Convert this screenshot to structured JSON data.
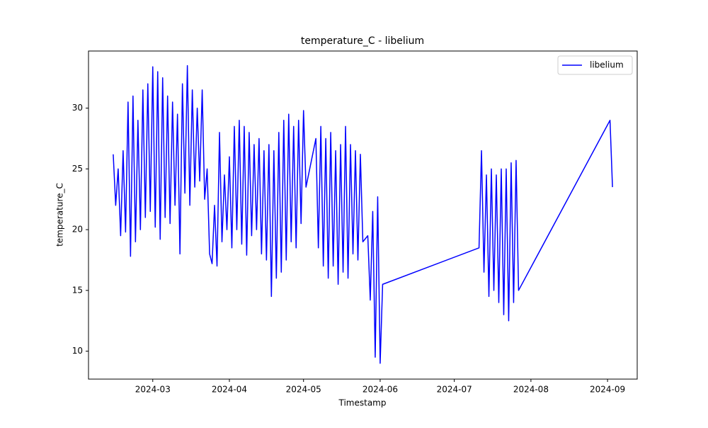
{
  "chart_data": {
    "type": "line",
    "title": "temperature_C - libelium",
    "x_label": "Timestamp",
    "y_label": "temperature_C",
    "x": [
      "2024-02-14",
      "2024-02-15",
      "2024-02-16",
      "2024-02-17",
      "2024-02-18",
      "2024-02-19",
      "2024-02-20",
      "2024-02-21",
      "2024-02-22",
      "2024-02-23",
      "2024-02-24",
      "2024-02-25",
      "2024-02-26",
      "2024-02-27",
      "2024-02-28",
      "2024-02-29",
      "2024-03-01",
      "2024-03-02",
      "2024-03-03",
      "2024-03-04",
      "2024-03-05",
      "2024-03-06",
      "2024-03-07",
      "2024-03-08",
      "2024-03-09",
      "2024-03-10",
      "2024-03-11",
      "2024-03-12",
      "2024-03-13",
      "2024-03-14",
      "2024-03-15",
      "2024-03-16",
      "2024-03-17",
      "2024-03-18",
      "2024-03-19",
      "2024-03-20",
      "2024-03-21",
      "2024-03-22",
      "2024-03-23",
      "2024-03-24",
      "2024-03-25",
      "2024-03-26",
      "2024-03-27",
      "2024-03-28",
      "2024-03-29",
      "2024-03-30",
      "2024-03-31",
      "2024-04-01",
      "2024-04-02",
      "2024-04-03",
      "2024-04-04",
      "2024-04-05",
      "2024-04-06",
      "2024-04-07",
      "2024-04-08",
      "2024-04-09",
      "2024-04-10",
      "2024-04-11",
      "2024-04-12",
      "2024-04-13",
      "2024-04-14",
      "2024-04-15",
      "2024-04-16",
      "2024-04-17",
      "2024-04-18",
      "2024-04-19",
      "2024-04-20",
      "2024-04-21",
      "2024-04-22",
      "2024-04-23",
      "2024-04-24",
      "2024-04-25",
      "2024-04-26",
      "2024-04-27",
      "2024-04-28",
      "2024-04-29",
      "2024-04-30",
      "2024-05-01",
      "2024-05-02",
      "2024-05-06",
      "2024-05-07",
      "2024-05-08",
      "2024-05-09",
      "2024-05-10",
      "2024-05-11",
      "2024-05-12",
      "2024-05-13",
      "2024-05-14",
      "2024-05-15",
      "2024-05-16",
      "2024-05-17",
      "2024-05-18",
      "2024-05-19",
      "2024-05-20",
      "2024-05-21",
      "2024-05-22",
      "2024-05-23",
      "2024-05-24",
      "2024-05-25",
      "2024-05-27",
      "2024-05-28",
      "2024-05-29",
      "2024-05-30",
      "2024-05-31",
      "2024-06-01",
      "2024-06-02",
      "2024-07-11",
      "2024-07-12",
      "2024-07-13",
      "2024-07-14",
      "2024-07-15",
      "2024-07-16",
      "2024-07-17",
      "2024-07-18",
      "2024-07-19",
      "2024-07-20",
      "2024-07-21",
      "2024-07-22",
      "2024-07-23",
      "2024-07-24",
      "2024-07-25",
      "2024-07-26",
      "2024-07-27",
      "2024-09-02",
      "2024-09-03"
    ],
    "series": [
      {
        "name": "libelium",
        "color": "#0000ff",
        "values": [
          26.2,
          22.0,
          25.0,
          19.5,
          26.5,
          19.8,
          30.5,
          17.8,
          31.0,
          19.0,
          29.0,
          20.0,
          31.5,
          21.0,
          32.0,
          21.5,
          33.4,
          20.2,
          33.0,
          19.2,
          32.5,
          21.0,
          31.0,
          20.5,
          30.5,
          22.0,
          29.5,
          18.0,
          32.0,
          23.0,
          33.5,
          22.0,
          31.5,
          23.5,
          30.0,
          24.0,
          31.5,
          22.5,
          25.0,
          18.0,
          17.2,
          22.0,
          17.0,
          28.0,
          19.0,
          24.5,
          20.0,
          26.0,
          18.5,
          28.5,
          20.0,
          29.0,
          18.8,
          28.5,
          17.9,
          28.0,
          19.5,
          27.0,
          20.0,
          27.5,
          18.0,
          26.5,
          17.5,
          27.0,
          14.5,
          26.5,
          16.0,
          28.0,
          16.5,
          29.0,
          17.5,
          29.5,
          19.0,
          28.5,
          18.5,
          29.0,
          20.5,
          29.8,
          23.5,
          27.5,
          18.5,
          28.5,
          17.0,
          27.5,
          16.0,
          28.0,
          17.0,
          26.5,
          15.5,
          27.0,
          16.5,
          28.5,
          16.0,
          27.0,
          18.0,
          26.5,
          17.5,
          26.2,
          19.0,
          19.5,
          14.2,
          21.5,
          9.5,
          22.7,
          9.0,
          15.5,
          18.5,
          26.5,
          16.5,
          24.5,
          14.5,
          25.0,
          15.0,
          24.5,
          14.0,
          25.0,
          13.0,
          25.0,
          12.5,
          25.5,
          14.0,
          25.7,
          15.0,
          29.0,
          23.5
        ]
      }
    ],
    "xlim": [
      "2024-02-04",
      "2024-09-13"
    ],
    "xticks": [
      "2024-03",
      "2024-04",
      "2024-05",
      "2024-06",
      "2024-07",
      "2024-08",
      "2024-09"
    ],
    "ylim": [
      7.7,
      34.7
    ],
    "yticks": [
      10,
      15,
      20,
      25,
      30
    ],
    "legend": "upper right",
    "grid": false
  }
}
